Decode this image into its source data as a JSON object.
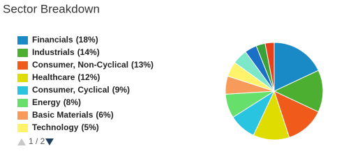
{
  "chart_data": {
    "type": "pie",
    "title": "Sector Breakdown",
    "categories": [
      "Financials",
      "Industrials",
      "Consumer, Non-Cyclical",
      "Healthcare",
      "Consumer, Cyclical",
      "Energy",
      "Basic Materials",
      "Technology",
      null,
      null,
      null,
      null
    ],
    "values": [
      18,
      14,
      13,
      12,
      9,
      8,
      6,
      5,
      5,
      4,
      3,
      3
    ],
    "value_labels": [
      "(18%)",
      "(14%)",
      "(13%)",
      "(12%)",
      "(9%)",
      "(8%)",
      "(6%)",
      "(5%)",
      null,
      null,
      null,
      null
    ],
    "colors": [
      "#1a8ac6",
      "#4caf32",
      "#f05a1a",
      "#dedc00",
      "#29c4e0",
      "#66e06a",
      "#f79a5a",
      "#fff36b",
      "#7de8c8",
      "#1a6fc6",
      "#3aa03a",
      "#e8401a"
    ],
    "legend_pager": "1 / 2"
  }
}
